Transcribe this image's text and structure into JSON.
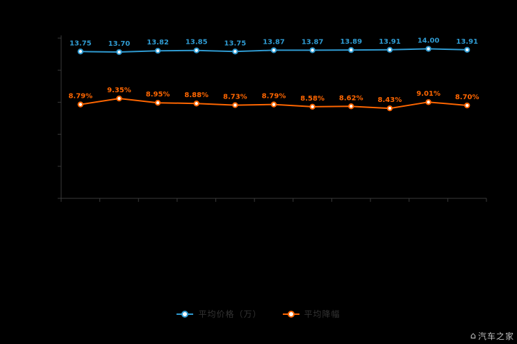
{
  "watermark": {
    "text": "汽车之家",
    "icon": "home-icon"
  },
  "chart_data": {
    "type": "line",
    "x": [
      1,
      2,
      3,
      4,
      5,
      6,
      7,
      8,
      9,
      10,
      11
    ],
    "series": [
      {
        "name": "平均价格（万）",
        "color": "#2f9bd2",
        "values": [
          13.75,
          13.7,
          13.82,
          13.85,
          13.75,
          13.87,
          13.87,
          13.89,
          13.91,
          14.0,
          13.91
        ],
        "labels": [
          "13.75",
          "13.70",
          "13.82",
          "13.85",
          "13.75",
          "13.87",
          "13.87",
          "13.89",
          "13.91",
          "14.00",
          "13.91"
        ]
      },
      {
        "name": "平均降幅",
        "color": "#ff6600",
        "values": [
          8.79,
          9.35,
          8.95,
          8.88,
          8.73,
          8.79,
          8.58,
          8.62,
          8.43,
          9.01,
          8.7
        ],
        "labels": [
          "8.79%",
          "9.35%",
          "8.95%",
          "8.88%",
          "8.73%",
          "8.79%",
          "8.58%",
          "8.62%",
          "8.43%",
          "9.01%",
          "8.70%"
        ]
      }
    ],
    "ylim": [
      0,
      15
    ],
    "y_tick_step": 3,
    "grid": false,
    "legend_position": "bottom",
    "axis_color": "#3a3a3a",
    "marker_fill": "#ffffff"
  }
}
